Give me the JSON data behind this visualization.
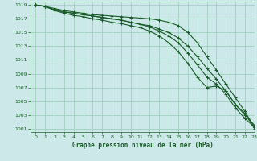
{
  "title": "Graphe pression niveau de la mer (hPa)",
  "background_color": "#cce8e8",
  "grid_color": "#99ccbb",
  "line_color": "#1a5c2a",
  "marker_color": "#1a5c2a",
  "xlim": [
    -0.5,
    23
  ],
  "ylim": [
    1000.5,
    1019.5
  ],
  "xticks": [
    0,
    1,
    2,
    3,
    4,
    5,
    6,
    7,
    8,
    9,
    10,
    11,
    12,
    13,
    14,
    15,
    16,
    17,
    18,
    19,
    20,
    21,
    22,
    23
  ],
  "yticks": [
    1001,
    1003,
    1005,
    1007,
    1009,
    1011,
    1013,
    1015,
    1017,
    1019
  ],
  "series": [
    [
      1019,
      1018.8,
      1018.5,
      1018.2,
      1018.0,
      1017.8,
      1017.6,
      1017.5,
      1017.4,
      1017.3,
      1017.2,
      1017.1,
      1017.0,
      1016.8,
      1016.5,
      1016.0,
      1015.0,
      1013.5,
      1011.5,
      1009.5,
      1007.5,
      1005.5,
      1003.5,
      1001.2
    ],
    [
      1019,
      1018.8,
      1018.3,
      1018.0,
      1017.8,
      1017.6,
      1017.4,
      1017.2,
      1017.0,
      1016.8,
      1016.5,
      1016.2,
      1016.0,
      1015.5,
      1015.0,
      1014.2,
      1013.0,
      1011.5,
      1009.8,
      1008.2,
      1006.5,
      1004.5,
      1003.0,
      1001.5
    ],
    [
      1019,
      1018.8,
      1018.3,
      1018.0,
      1017.8,
      1017.6,
      1017.4,
      1017.2,
      1017.0,
      1016.8,
      1016.5,
      1016.2,
      1015.8,
      1015.2,
      1014.5,
      1013.5,
      1012.0,
      1010.3,
      1008.5,
      1007.5,
      1006.0,
      1004.0,
      1002.5,
      1001.2
    ],
    [
      1019,
      1018.8,
      1018.2,
      1017.8,
      1017.5,
      1017.3,
      1017.0,
      1016.8,
      1016.5,
      1016.3,
      1016.0,
      1015.7,
      1015.2,
      1014.5,
      1013.5,
      1012.2,
      1010.5,
      1008.5,
      1007.0,
      1007.2,
      1006.5,
      1004.5,
      1003.2,
      1001.0
    ]
  ]
}
